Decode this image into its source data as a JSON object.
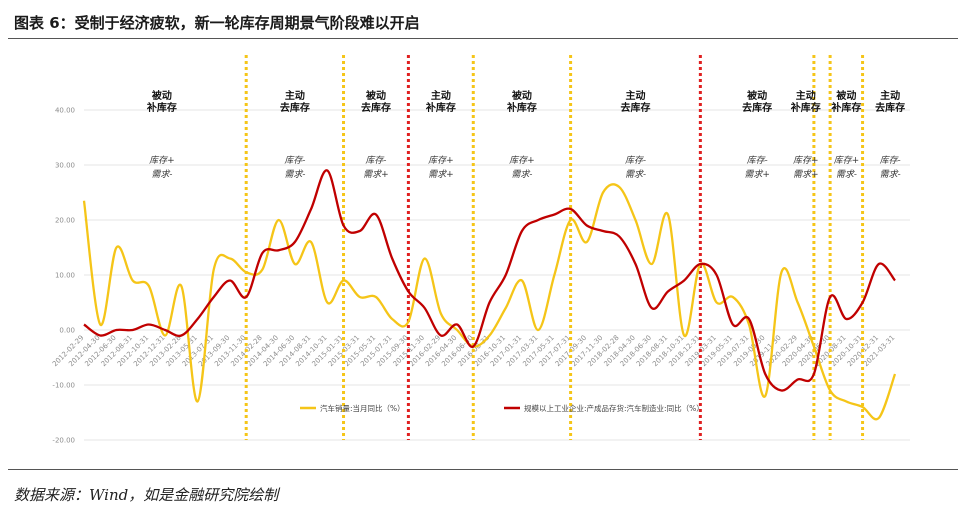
{
  "title": "图表 6：受制于经济疲软，新一轮库存周期景气阶段难以开启",
  "source": "数据来源：Wind，如是金融研究院绘制",
  "colors": {
    "series1": "#f5c518",
    "series2": "#c00000",
    "divider_yellow": "#f5c518",
    "divider_red": "#e02020",
    "grid": "#e6e6e6"
  },
  "chart_data": {
    "type": "line",
    "ylim": [
      -20,
      40
    ],
    "yticks": [
      "-20.00",
      "-10.00",
      "0.00",
      "10.00",
      "20.00",
      "30.00",
      "40.00"
    ],
    "ytick_values": [
      -20,
      -10,
      0,
      10,
      20,
      30,
      40
    ],
    "x": [
      "2012-02-29",
      "2012-04-30",
      "2012-06-30",
      "2012-08-31",
      "2012-10-31",
      "2012-12-31",
      "2013-02-28",
      "2013-05-31",
      "2013-07-31",
      "2013-09-30",
      "2013-11-30",
      "2014-02-28",
      "2014-04-30",
      "2014-06-30",
      "2014-08-31",
      "2014-10-31",
      "2015-01-31",
      "2015-03-31",
      "2015-05-31",
      "2015-07-31",
      "2015-09-30",
      "2015-11-30",
      "2016-02-29",
      "2016-04-30",
      "2016-06-30",
      "2016-08-31",
      "2016-10-31",
      "2017-01-31",
      "2017-03-31",
      "2017-05-31",
      "2017-07-31",
      "2017-09-30",
      "2017-11-30",
      "2018-02-28",
      "2018-04-30",
      "2018-06-30",
      "2018-08-31",
      "2018-10-31",
      "2018-12-31",
      "2019-03-31",
      "2019-05-31",
      "2019-07-31",
      "2019-09-30",
      "2019-11-30",
      "2020-02-29",
      "2020-04-30",
      "2020-06-30",
      "2020-08-31",
      "2020-10-31",
      "2020-12-31",
      "2021-03-31"
    ],
    "xticks": [
      "2012-02-29",
      "2012-04-30",
      "2012-06-30",
      "2012-08-31",
      "2012-10-31",
      "2012-12-31",
      "2013-02-28",
      "2013-05-31",
      "2013-07-31",
      "2013-09-30",
      "2013-11-30",
      "2014-02-28",
      "2014-04-30",
      "2014-06-30",
      "2014-08-31",
      "2014-10-31",
      "2015-01-31",
      "2015-03-31",
      "2015-05-31",
      "2015-07-31",
      "2015-09-30",
      "2015-11-30",
      "2016-02-29",
      "2016-04-30",
      "2016-06-30",
      "2016-08-31",
      "2016-10-31",
      "2017-01-31",
      "2017-03-31",
      "2017-05-31",
      "2017-07-31",
      "2017-09-30",
      "2017-11-30",
      "2018-02-28",
      "2018-04-30",
      "2018-06-30",
      "2018-08-31",
      "2018-10-31",
      "2018-12-31",
      "2019-03-31",
      "2019-05-31",
      "2019-07-31",
      "2019-09-30",
      "2019-11-30",
      "2020-02-29",
      "2020-04-30",
      "2020-06-30",
      "2020-08-31",
      "2020-10-31",
      "2020-12-31",
      "2021-03-31"
    ],
    "series": [
      {
        "name": "汽车销量:当月同比（%）",
        "values": [
          23.5,
          1,
          15,
          9,
          8,
          -1,
          8,
          -13,
          11,
          13,
          10.5,
          11,
          20,
          12,
          16,
          5,
          9,
          6,
          6,
          2,
          1.5,
          13,
          3,
          0,
          -3,
          -1,
          4,
          9,
          0,
          10,
          20,
          16,
          25,
          26,
          20,
          12,
          21,
          -1,
          12,
          5,
          6,
          1,
          -12,
          10.5,
          5,
          -3,
          -11,
          -13,
          -14,
          -16,
          -8
        ]
      },
      {
        "name": "规模以上工业企业:产成品存货:汽车制造业:同比（%）",
        "values": [
          1,
          -1,
          0,
          0,
          1,
          0,
          -1,
          2,
          6,
          9,
          6,
          14,
          14.5,
          16,
          22,
          29,
          19,
          18,
          21,
          13,
          7,
          4,
          -1,
          1,
          -3,
          5,
          10,
          18,
          20,
          21,
          22,
          19,
          18,
          17,
          12,
          4,
          7,
          9,
          12,
          10,
          1,
          2,
          -8,
          -11,
          -9,
          -8,
          6,
          2,
          5,
          12,
          9
        ]
      }
    ]
  },
  "phases": [
    {
      "label_line1": "被动",
      "label_line2": "补库存",
      "note_line1": "库存+",
      "note_line2": "需求-"
    },
    {
      "label_line1": "主动",
      "label_line2": "去库存",
      "note_line1": "库存-",
      "note_line2": "需求-"
    },
    {
      "label_line1": "被动",
      "label_line2": "去库存",
      "note_line1": "库存-",
      "note_line2": "需求+"
    },
    {
      "label_line1": "主动",
      "label_line2": "补库存",
      "note_line1": "库存+",
      "note_line2": "需求+"
    },
    {
      "label_line1": "被动",
      "label_line2": "补库存",
      "note_line1": "库存+",
      "note_line2": "需求-"
    },
    {
      "label_line1": "主动",
      "label_line2": "去库存",
      "note_line1": "库存-",
      "note_line2": "需求-"
    },
    {
      "label_line1": "被动",
      "label_line2": "去库存",
      "note_line1": "库存-",
      "note_line2": "需求+"
    },
    {
      "label_line1": "主动",
      "label_line2": "补库存",
      "note_line1": "库存+",
      "note_line2": "需求+"
    },
    {
      "label_line1": "被动",
      "label_line2": "补库存",
      "note_line1": "库存+",
      "note_line2": "需求-"
    },
    {
      "label_line1": "主动",
      "label_line2": "去库存",
      "note_line1": "库存-",
      "note_line2": "需求-"
    }
  ],
  "dividers": [
    {
      "x_index": 10,
      "color": "yellow"
    },
    {
      "x_index": 16,
      "color": "yellow"
    },
    {
      "x_index": 20,
      "color": "red"
    },
    {
      "x_index": 24,
      "color": "yellow"
    },
    {
      "x_index": 30,
      "color": "yellow"
    },
    {
      "x_index": 38,
      "color": "red"
    },
    {
      "x_index": 45,
      "color": "yellow"
    },
    {
      "x_index": 46,
      "color": "yellow"
    },
    {
      "x_index": 48,
      "color": "yellow"
    }
  ]
}
